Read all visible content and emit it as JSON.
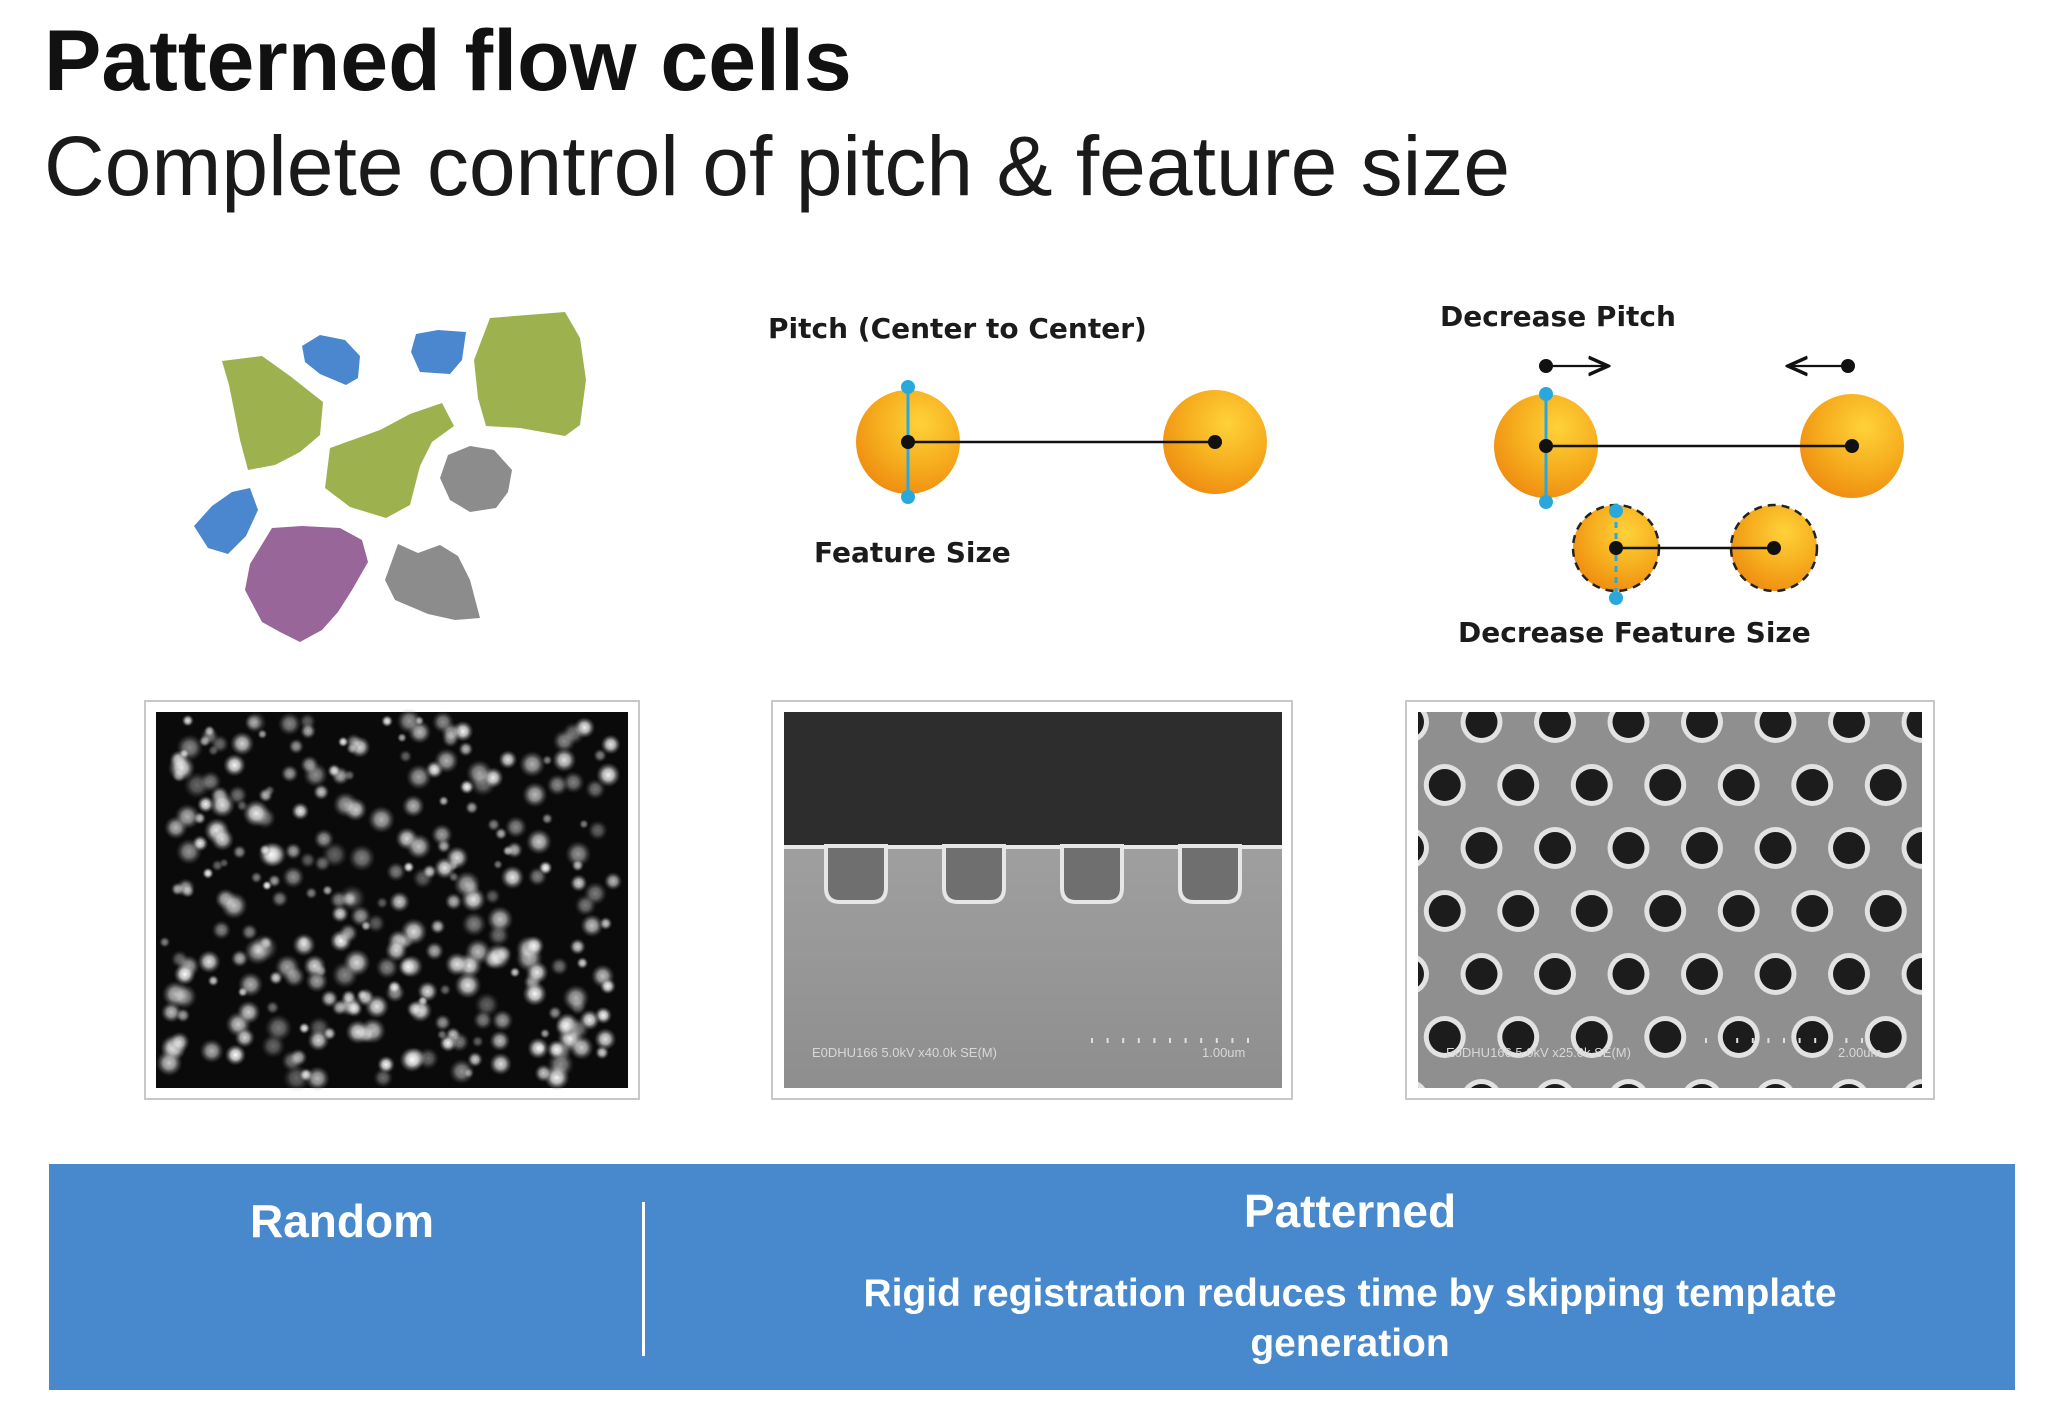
{
  "header": {
    "title": "Patterned flow cells",
    "subtitle": "Complete control of pitch & feature size"
  },
  "diagram": {
    "pitch_label": "Pitch (Center to Center)",
    "feature_size_label": "Feature Size",
    "decrease_pitch_label": "Decrease Pitch",
    "decrease_feature_label": "Decrease Feature Size"
  },
  "micrographs": {
    "trench_caption": "E0DHU166 5.0kV x40.0k SE(M)",
    "trench_scale": "1.00um",
    "holes_caption": "E0DHU166 5.0kV x25.0k SE(M)",
    "holes_scale": "2.00um"
  },
  "banner": {
    "left_label": "Random",
    "right_label": "Patterned",
    "right_text_line1": "Rigid registration reduces time by skipping template",
    "right_text_line2": "generation"
  },
  "colors": {
    "banner": "#4789cc",
    "cluster_green": "#9db24e",
    "cluster_blue": "#4a87cf",
    "cluster_gray": "#8c8c8c",
    "cluster_purple": "#99669a",
    "feature_orange": "#f5a51a",
    "marker_cyan": "#2aa8dc"
  }
}
